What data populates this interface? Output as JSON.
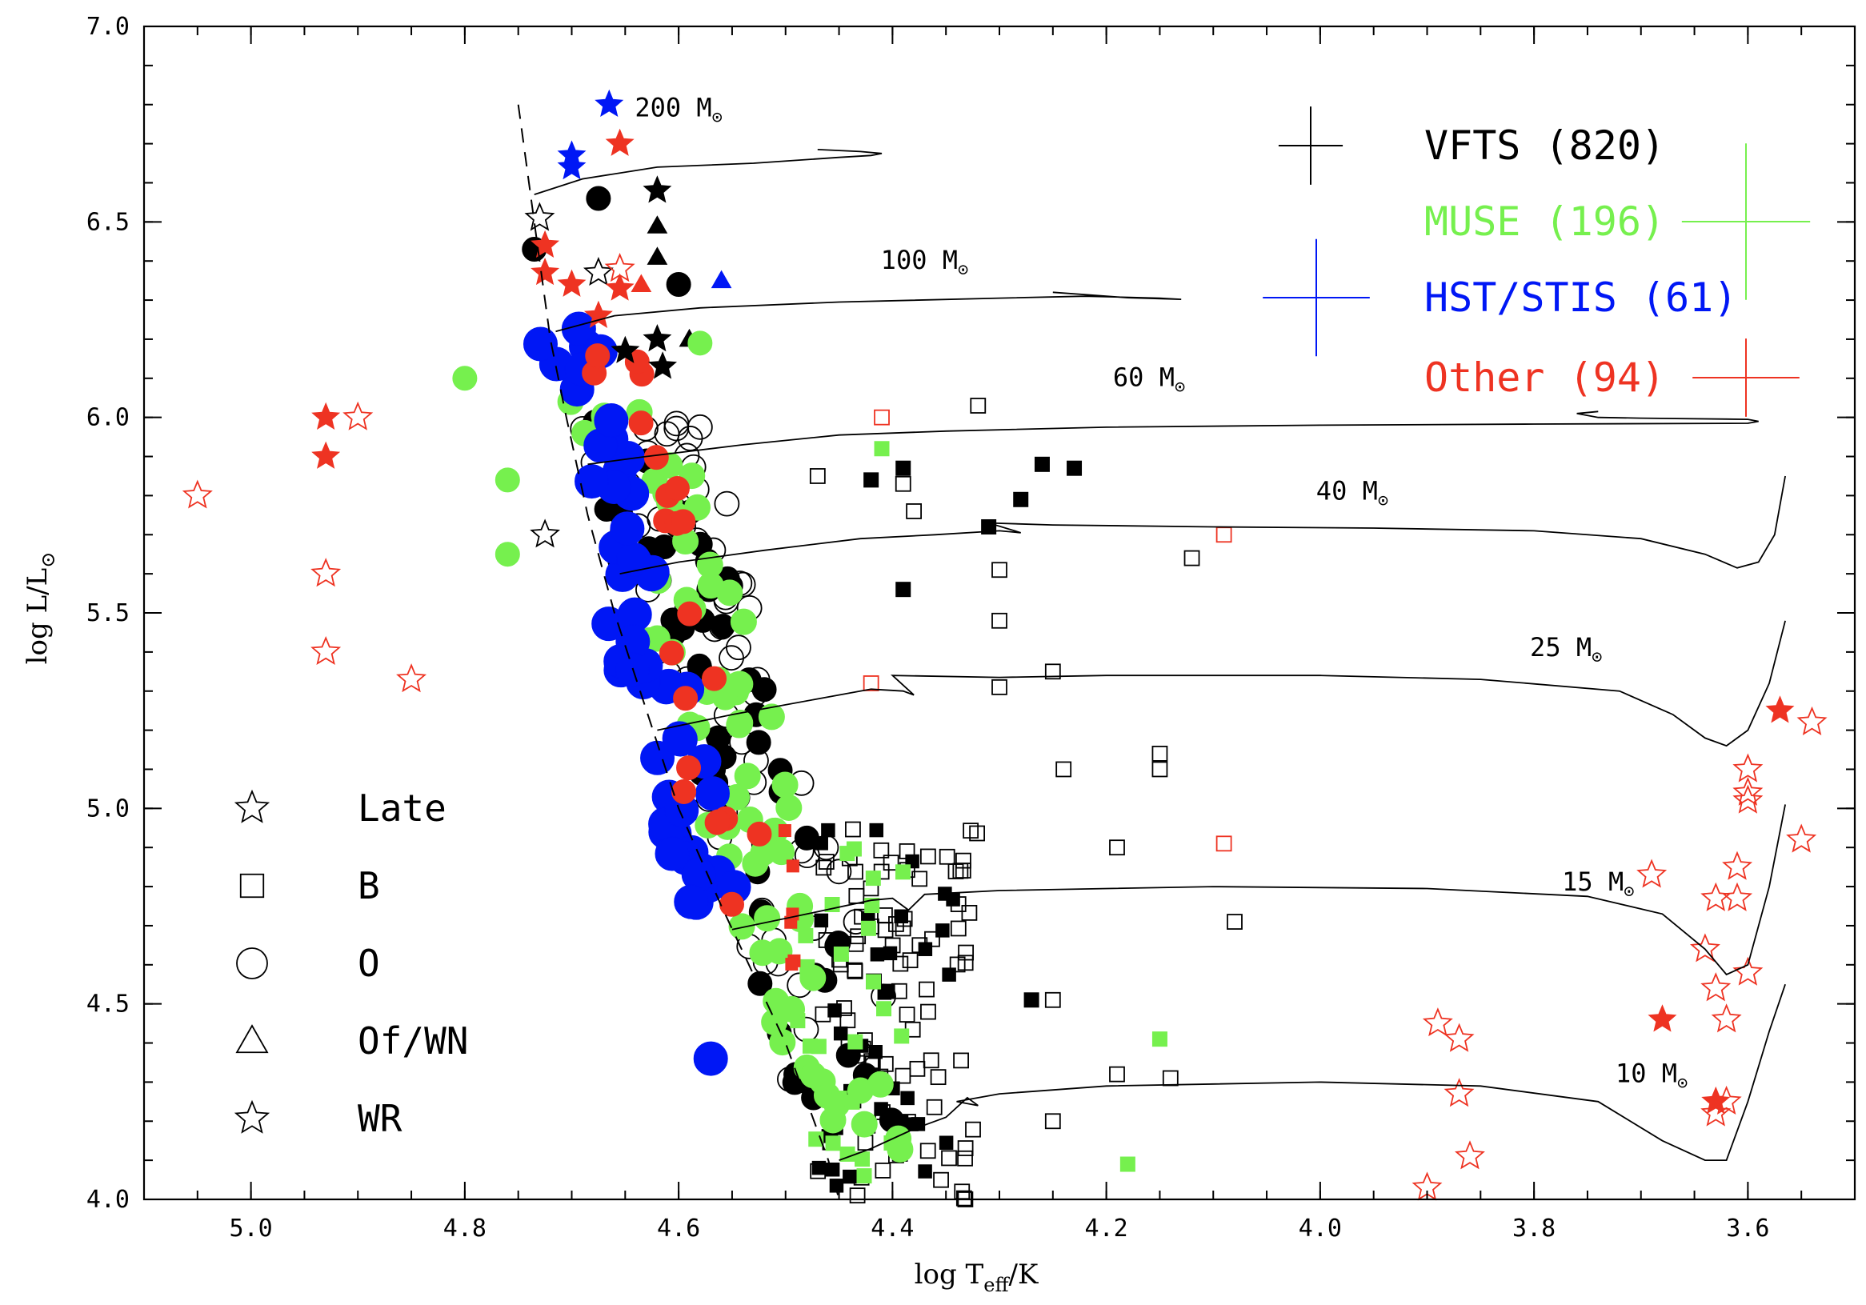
{
  "chart_data": {
    "type": "scatter",
    "title": "",
    "xlabel_main": "log T",
    "xlabel_sub": "eff",
    "xlabel_tail": "/K",
    "ylabel_main": "log L/L",
    "ylabel_sub": "⊙",
    "xlim": [
      5.1,
      3.5
    ],
    "ylim": [
      4.0,
      7.0
    ],
    "x_ticks": [
      "5.0",
      "4.8",
      "4.6",
      "4.4",
      "4.2",
      "4.0",
      "3.8",
      "3.6"
    ],
    "y_ticks": [
      "4.0",
      "4.5",
      "5.0",
      "5.5",
      "6.0",
      "6.5",
      "7.0"
    ],
    "tracks": [
      {
        "label": "200 M",
        "mass": 200,
        "points": [
          [
            4.735,
            6.57
          ],
          [
            4.69,
            6.61
          ],
          [
            4.62,
            6.64
          ],
          [
            4.53,
            6.65
          ],
          [
            4.45,
            6.665
          ],
          [
            4.42,
            6.67
          ],
          [
            4.41,
            6.675
          ],
          [
            4.43,
            6.68
          ],
          [
            4.47,
            6.685
          ]
        ]
      },
      {
        "label": "100 M",
        "mass": 100,
        "points": [
          [
            4.715,
            6.22
          ],
          [
            4.66,
            6.26
          ],
          [
            4.58,
            6.28
          ],
          [
            4.45,
            6.295
          ],
          [
            4.3,
            6.305
          ],
          [
            4.22,
            6.31
          ],
          [
            4.15,
            6.305
          ],
          [
            4.13,
            6.302
          ],
          [
            4.18,
            6.306
          ],
          [
            4.25,
            6.32
          ]
        ]
      },
      {
        "label": "60 M",
        "mass": 60,
        "points": [
          [
            4.685,
            5.88
          ],
          [
            4.63,
            5.9
          ],
          [
            4.54,
            5.93
          ],
          [
            4.45,
            5.955
          ],
          [
            4.35,
            5.965
          ],
          [
            4.2,
            5.975
          ],
          [
            4.0,
            5.98
          ],
          [
            3.8,
            5.983
          ],
          [
            3.6,
            5.985
          ],
          [
            3.59,
            5.99
          ],
          [
            3.6,
            5.995
          ],
          [
            3.7,
            5.998
          ],
          [
            3.74,
            6.0
          ],
          [
            3.76,
            6.01
          ],
          [
            3.74,
            6.015
          ]
        ]
      },
      {
        "label": "40 M",
        "mass": 40,
        "points": [
          [
            4.655,
            5.6
          ],
          [
            4.6,
            5.63
          ],
          [
            4.52,
            5.66
          ],
          [
            4.43,
            5.69
          ],
          [
            4.36,
            5.7
          ],
          [
            4.3,
            5.71
          ],
          [
            4.28,
            5.705
          ],
          [
            4.31,
            5.73
          ],
          [
            4.25,
            5.725
          ],
          [
            4.1,
            5.72
          ],
          [
            3.95,
            5.717
          ],
          [
            3.8,
            5.71
          ],
          [
            3.7,
            5.69
          ],
          [
            3.64,
            5.65
          ],
          [
            3.61,
            5.615
          ],
          [
            3.59,
            5.63
          ],
          [
            3.575,
            5.7
          ],
          [
            3.565,
            5.85
          ]
        ]
      },
      {
        "label": "25 M",
        "mass": 25,
        "points": [
          [
            4.62,
            5.2
          ],
          [
            4.55,
            5.24
          ],
          [
            4.47,
            5.28
          ],
          [
            4.42,
            5.305
          ],
          [
            4.39,
            5.3
          ],
          [
            4.38,
            5.29
          ],
          [
            4.4,
            5.34
          ],
          [
            4.3,
            5.335
          ],
          [
            4.2,
            5.34
          ],
          [
            4.0,
            5.34
          ],
          [
            3.85,
            5.33
          ],
          [
            3.72,
            5.3
          ],
          [
            3.67,
            5.24
          ],
          [
            3.64,
            5.18
          ],
          [
            3.62,
            5.16
          ],
          [
            3.6,
            5.2
          ],
          [
            3.58,
            5.32
          ],
          [
            3.565,
            5.48
          ]
        ]
      },
      {
        "label": "15 M",
        "mass": 15,
        "points": [
          [
            4.55,
            4.69
          ],
          [
            4.48,
            4.73
          ],
          [
            4.42,
            4.765
          ],
          [
            4.4,
            4.77
          ],
          [
            4.385,
            4.74
          ],
          [
            4.37,
            4.78
          ],
          [
            4.3,
            4.79
          ],
          [
            4.1,
            4.8
          ],
          [
            3.9,
            4.795
          ],
          [
            3.75,
            4.775
          ],
          [
            3.68,
            4.73
          ],
          [
            3.64,
            4.64
          ],
          [
            3.62,
            4.575
          ],
          [
            3.6,
            4.6
          ],
          [
            3.58,
            4.8
          ],
          [
            3.565,
            5.01
          ]
        ]
      },
      {
        "label": "10 M",
        "mass": 10,
        "points": [
          [
            4.45,
            4.1
          ],
          [
            4.42,
            4.13
          ],
          [
            4.38,
            4.18
          ],
          [
            4.35,
            4.21
          ],
          [
            4.33,
            4.26
          ],
          [
            4.32,
            4.24
          ],
          [
            4.34,
            4.25
          ],
          [
            4.3,
            4.27
          ],
          [
            4.2,
            4.29
          ],
          [
            4.0,
            4.3
          ],
          [
            3.85,
            4.29
          ],
          [
            3.74,
            4.25
          ],
          [
            3.68,
            4.15
          ],
          [
            3.64,
            4.1
          ],
          [
            3.62,
            4.1
          ],
          [
            3.6,
            4.25
          ],
          [
            3.58,
            4.43
          ],
          [
            3.565,
            4.55
          ]
        ]
      }
    ],
    "zams": [
      [
        4.75,
        6.8
      ],
      [
        4.735,
        6.5
      ],
      [
        4.72,
        6.2
      ],
      [
        4.705,
        6.0
      ],
      [
        4.685,
        5.75
      ],
      [
        4.66,
        5.5
      ],
      [
        4.63,
        5.25
      ],
      [
        4.6,
        5.0
      ],
      [
        4.56,
        4.75
      ],
      [
        4.5,
        4.4
      ],
      [
        4.46,
        4.1
      ],
      [
        4.45,
        4.0
      ]
    ],
    "legend": {
      "location": "top-right",
      "entries": [
        {
          "label": "VFTS (820)",
          "color": "#000000",
          "err_x": 0.03,
          "err_y": 0.1
        },
        {
          "label": "MUSE (196)",
          "color": "#76f04e",
          "err_x": 0.06,
          "err_y": 0.2
        },
        {
          "label": "HST/STIS (61)",
          "color": "#0017f5",
          "err_x": 0.05,
          "err_y": 0.15
        },
        {
          "label": "Other (94)",
          "color": "#ee3322",
          "err_x": 0.05,
          "err_y": 0.1
        }
      ]
    },
    "symbol_key": [
      {
        "shape": "star",
        "label": "Late"
      },
      {
        "shape": "square",
        "label": "B"
      },
      {
        "shape": "circle",
        "label": "O"
      },
      {
        "shape": "triangle",
        "label": "Of/WN"
      },
      {
        "shape": "star",
        "label": "WR"
      }
    ],
    "highlights": [
      [
        4.665,
        6.8,
        "blue",
        "star",
        1
      ],
      [
        4.7,
        6.67,
        "blue",
        "star",
        1
      ],
      [
        4.7,
        6.64,
        "blue",
        "star",
        1
      ],
      [
        4.655,
        6.7,
        "red",
        "star",
        1
      ],
      [
        4.62,
        6.58,
        "black",
        "star",
        1
      ],
      [
        4.62,
        6.49,
        "black",
        "triangle",
        1
      ],
      [
        4.62,
        6.41,
        "black",
        "triangle",
        1
      ],
      [
        4.56,
        6.35,
        "blue",
        "triangle",
        1
      ],
      [
        4.675,
        6.56,
        "black",
        "circle",
        1
      ],
      [
        4.735,
        6.43,
        "black",
        "circle",
        1
      ],
      [
        4.6,
        6.34,
        "black",
        "circle",
        1
      ],
      [
        4.62,
        6.2,
        "black",
        "star",
        1
      ],
      [
        4.59,
        6.2,
        "black",
        "triangle",
        1
      ],
      [
        4.615,
        6.13,
        "black",
        "star",
        1
      ],
      [
        4.65,
        6.17,
        "black",
        "star",
        1
      ],
      [
        4.73,
        6.51,
        "black",
        "star",
        0
      ],
      [
        4.725,
        5.7,
        "black",
        "star",
        0
      ],
      [
        4.675,
        6.37,
        "black",
        "star",
        0
      ],
      [
        4.655,
        6.38,
        "red",
        "star",
        0
      ],
      [
        4.725,
        6.44,
        "red",
        "star",
        1
      ],
      [
        4.725,
        6.37,
        "red",
        "star",
        1
      ],
      [
        4.7,
        6.34,
        "red",
        "star",
        1
      ],
      [
        4.655,
        6.33,
        "red",
        "star",
        1
      ],
      [
        4.675,
        6.26,
        "red",
        "star",
        1
      ],
      [
        4.635,
        6.34,
        "red",
        "triangle",
        1
      ],
      [
        4.93,
        6.0,
        "red",
        "star",
        1
      ],
      [
        4.93,
        5.9,
        "red",
        "star",
        1
      ],
      [
        4.9,
        6.0,
        "red",
        "star",
        0
      ],
      [
        5.05,
        5.8,
        "red",
        "star",
        0
      ],
      [
        4.93,
        5.6,
        "red",
        "star",
        0
      ],
      [
        4.93,
        5.4,
        "red",
        "star",
        0
      ],
      [
        4.85,
        5.33,
        "red",
        "star",
        0
      ],
      [
        4.8,
        6.1,
        "green",
        "circle",
        1
      ],
      [
        4.76,
        5.84,
        "green",
        "circle",
        1
      ],
      [
        4.76,
        5.65,
        "green",
        "circle",
        1
      ],
      [
        4.58,
        6.19,
        "green",
        "circle",
        1
      ],
      [
        4.57,
        4.36,
        "blue",
        "circle",
        1
      ],
      [
        4.32,
        6.03,
        "black",
        "square",
        0
      ],
      [
        4.42,
        5.84,
        "black",
        "square",
        1
      ],
      [
        4.39,
        5.87,
        "black",
        "square",
        1
      ],
      [
        4.39,
        5.83,
        "black",
        "square",
        0
      ],
      [
        4.41,
        5.92,
        "green",
        "square",
        1
      ],
      [
        4.26,
        5.88,
        "black",
        "square",
        1
      ],
      [
        4.23,
        5.87,
        "black",
        "square",
        1
      ],
      [
        4.28,
        5.79,
        "black",
        "square",
        1
      ],
      [
        4.31,
        5.72,
        "black",
        "square",
        1
      ],
      [
        4.38,
        5.76,
        "black",
        "square",
        0
      ],
      [
        4.47,
        5.85,
        "black",
        "square",
        0
      ],
      [
        4.12,
        5.64,
        "black",
        "square",
        0
      ],
      [
        4.09,
        5.7,
        "red",
        "square",
        0
      ],
      [
        4.41,
        6.0,
        "red",
        "square",
        0
      ],
      [
        4.3,
        5.61,
        "black",
        "square",
        0
      ],
      [
        4.3,
        5.48,
        "black",
        "square",
        0
      ],
      [
        4.39,
        5.56,
        "black",
        "square",
        1
      ],
      [
        4.25,
        5.35,
        "black",
        "square",
        0
      ],
      [
        4.3,
        5.31,
        "black",
        "square",
        0
      ],
      [
        4.42,
        5.32,
        "red",
        "square",
        0
      ],
      [
        4.24,
        5.1,
        "black",
        "square",
        0
      ],
      [
        4.15,
        5.14,
        "black",
        "square",
        0
      ],
      [
        4.15,
        5.1,
        "black",
        "square",
        0
      ],
      [
        4.19,
        4.9,
        "black",
        "square",
        0
      ],
      [
        4.09,
        4.91,
        "red",
        "square",
        0
      ],
      [
        4.08,
        4.71,
        "black",
        "square",
        0
      ],
      [
        4.27,
        4.51,
        "black",
        "square",
        1
      ],
      [
        4.25,
        4.51,
        "black",
        "square",
        0
      ],
      [
        4.15,
        4.41,
        "green",
        "square",
        1
      ],
      [
        4.19,
        4.32,
        "black",
        "square",
        0
      ],
      [
        4.14,
        4.31,
        "black",
        "square",
        0
      ],
      [
        4.25,
        4.2,
        "black",
        "square",
        0
      ],
      [
        4.18,
        4.09,
        "green",
        "square",
        1
      ],
      [
        3.57,
        5.25,
        "red",
        "star",
        1
      ],
      [
        3.54,
        5.22,
        "red",
        "star",
        0
      ],
      [
        3.6,
        5.1,
        "red",
        "star",
        0
      ],
      [
        3.6,
        5.04,
        "red",
        "star",
        0
      ],
      [
        3.6,
        5.02,
        "red",
        "star",
        0
      ],
      [
        3.55,
        4.92,
        "red",
        "star",
        0
      ],
      [
        3.61,
        4.85,
        "red",
        "star",
        0
      ],
      [
        3.69,
        4.83,
        "red",
        "star",
        0
      ],
      [
        3.63,
        4.77,
        "red",
        "star",
        0
      ],
      [
        3.61,
        4.77,
        "red",
        "star",
        0
      ],
      [
        3.64,
        4.64,
        "red",
        "star",
        0
      ],
      [
        3.6,
        4.58,
        "red",
        "star",
        0
      ],
      [
        3.63,
        4.54,
        "red",
        "star",
        0
      ],
      [
        3.62,
        4.46,
        "red",
        "star",
        0
      ],
      [
        3.68,
        4.46,
        "red",
        "star",
        1
      ],
      [
        3.89,
        4.45,
        "red",
        "star",
        0
      ],
      [
        3.87,
        4.41,
        "red",
        "star",
        0
      ],
      [
        3.87,
        4.27,
        "red",
        "star",
        0
      ],
      [
        3.63,
        4.25,
        "red",
        "star",
        1
      ],
      [
        3.62,
        4.25,
        "red",
        "star",
        0
      ],
      [
        3.63,
        4.22,
        "red",
        "star",
        0
      ],
      [
        3.86,
        4.11,
        "red",
        "star",
        0
      ],
      [
        3.9,
        4.03,
        "red",
        "star",
        0
      ]
    ]
  }
}
